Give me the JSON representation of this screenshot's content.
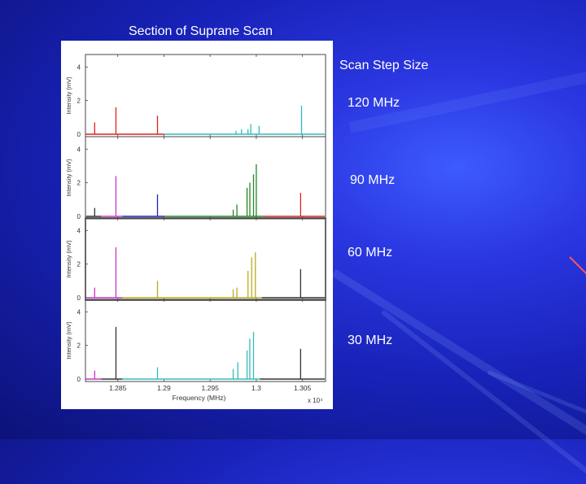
{
  "slide": {
    "title": "Section of Suprane Scan",
    "step_heading": "Scan Step Size",
    "step_labels": [
      "120 MHz",
      "90 MHz",
      "60 MHz",
      "30 MHz"
    ]
  },
  "colors": {
    "background": "#1a24c0",
    "red": "#dd2222",
    "cyan": "#33bbbb",
    "magenta": "#cc33cc",
    "green": "#228822",
    "blue": "#2222bb",
    "olive": "#bbaa22",
    "dark": "#333333"
  },
  "chart_data": [
    {
      "type": "line",
      "title": "120 MHz",
      "ylabel": "Intensity (mV)",
      "ylim": [
        0,
        4.5
      ],
      "yticks": [
        "0",
        "2",
        "4"
      ],
      "xlim": [
        1.2815,
        1.3075
      ],
      "series": [
        {
          "color": "red",
          "x": [
            1.2825,
            1.2848,
            1.2893
          ],
          "y": [
            0.7,
            1.6,
            1.1
          ]
        },
        {
          "color": "cyan",
          "x": [
            1.2978,
            1.2984,
            1.2991,
            1.2994,
            1.3003,
            1.3049
          ],
          "y": [
            0.2,
            0.3,
            0.3,
            0.6,
            0.5,
            1.7
          ]
        }
      ]
    },
    {
      "type": "line",
      "title": "90 MHz",
      "ylabel": "Intensity (mV)",
      "ylim": [
        0,
        4.5
      ],
      "yticks": [
        "0",
        "2",
        "4"
      ],
      "xlim": [
        1.2815,
        1.3075
      ],
      "series": [
        {
          "color": "dark",
          "x": [
            1.2825
          ],
          "y": [
            0.5
          ]
        },
        {
          "color": "magenta",
          "x": [
            1.2848
          ],
          "y": [
            2.4
          ]
        },
        {
          "color": "blue",
          "x": [
            1.2893
          ],
          "y": [
            1.3
          ]
        },
        {
          "color": "green",
          "x": [
            1.2975,
            1.2979,
            1.299,
            1.2993,
            1.2997,
            1.3
          ],
          "y": [
            0.4,
            0.7,
            1.7,
            2.0,
            2.5,
            3.1
          ]
        },
        {
          "color": "red",
          "x": [
            1.3048
          ],
          "y": [
            1.4
          ]
        }
      ]
    },
    {
      "type": "line",
      "title": "60 MHz",
      "ylabel": "Intensity (mV)",
      "ylim": [
        0,
        4.5
      ],
      "yticks": [
        "0",
        "2",
        "4"
      ],
      "xlim": [
        1.2815,
        1.3075
      ],
      "series": [
        {
          "color": "magenta",
          "x": [
            1.2825,
            1.2848
          ],
          "y": [
            0.6,
            3.0
          ]
        },
        {
          "color": "olive",
          "x": [
            1.2893,
            1.2975,
            1.2979,
            1.2991,
            1.2995,
            1.2999
          ],
          "y": [
            1.0,
            0.5,
            0.6,
            1.6,
            2.4,
            2.7
          ]
        },
        {
          "color": "dark",
          "x": [
            1.3048
          ],
          "y": [
            1.7
          ]
        }
      ]
    },
    {
      "type": "line",
      "title": "30 MHz",
      "ylabel": "Intensity (mV)",
      "ylim": [
        0,
        4.5
      ],
      "yticks": [
        "0",
        "2",
        "4"
      ],
      "xlim": [
        1.2815,
        1.3075
      ],
      "xlabel": "Frequency (MHz)",
      "xticks": [
        "1.285",
        "1.29",
        "1.295",
        "1.3",
        "1.305"
      ],
      "x_exponent": "x 10⁴",
      "series": [
        {
          "color": "magenta",
          "x": [
            1.2825
          ],
          "y": [
            0.5
          ]
        },
        {
          "color": "dark",
          "x": [
            1.2848
          ],
          "y": [
            3.1
          ]
        },
        {
          "color": "cyan",
          "x": [
            1.2893,
            1.2975,
            1.298,
            1.299,
            1.2993,
            1.2997
          ],
          "y": [
            0.7,
            0.6,
            1.0,
            1.7,
            2.4,
            2.8
          ]
        },
        {
          "color": "dark",
          "x": [
            1.3048
          ],
          "y": [
            1.8
          ]
        }
      ]
    }
  ]
}
